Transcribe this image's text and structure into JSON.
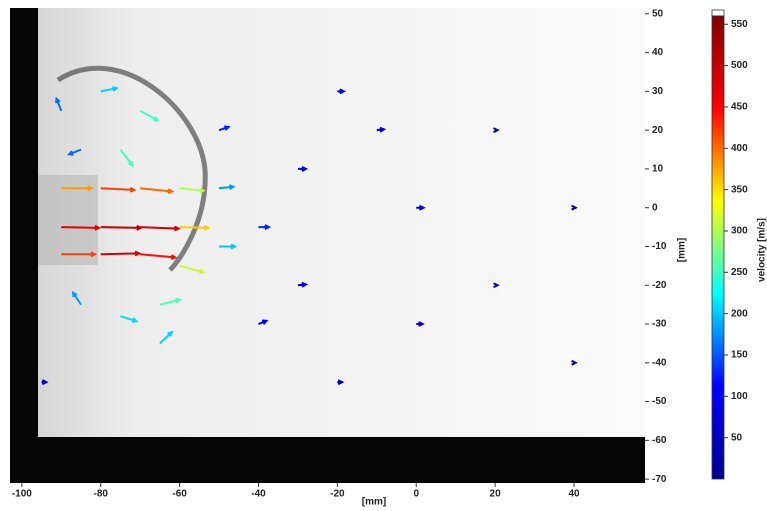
{
  "chart_data": {
    "type": "quiver",
    "xlabel": "[mm]",
    "ylabel": "[mm]",
    "xlim": [
      -103,
      58
    ],
    "ylim": [
      -71,
      51.5
    ],
    "xticks": [
      -100,
      -80,
      -60,
      -40,
      -20,
      0,
      20,
      40
    ],
    "yticks": [
      50,
      40,
      30,
      20,
      10,
      0,
      -10,
      -20,
      -30,
      -40,
      -50,
      -60,
      -70
    ],
    "vectors": {
      "x": [
        -90,
        -80,
        -70,
        -85,
        -75,
        -90,
        -80,
        -70,
        -60,
        -90,
        -80,
        -70,
        -60,
        -90,
        -80,
        -70,
        -60,
        -85,
        -75,
        -65,
        -65,
        -50,
        -50,
        -50,
        -40,
        -40,
        -30,
        -30,
        -20,
        -20,
        0,
        0,
        20,
        20,
        40,
        40,
        -95,
        -10
      ],
      "y": [
        25,
        30,
        25,
        15,
        15,
        5,
        5,
        5,
        5,
        -5,
        -5,
        -5,
        -5,
        -12,
        -12,
        -12,
        -15,
        -25,
        -28,
        -25,
        -35,
        -10,
        5,
        20,
        -5,
        -30,
        10,
        -20,
        30,
        -45,
        0,
        -30,
        20,
        -20,
        0,
        -40,
        -45,
        20
      ],
      "u": [
        -60,
        200,
        220,
        -150,
        150,
        380,
        420,
        400,
        300,
        470,
        500,
        480,
        360,
        420,
        480,
        440,
        300,
        -100,
        200,
        250,
        150,
        200,
        180,
        120,
        130,
        100,
        100,
        100,
        80,
        60,
        90,
        80,
        30,
        30,
        20,
        20,
        60,
        90
      ],
      "v": [
        150,
        40,
        -120,
        -60,
        -200,
        0,
        -20,
        -40,
        -30,
        -10,
        -10,
        -20,
        -10,
        0,
        10,
        -40,
        -80,
        150,
        -60,
        60,
        140,
        0,
        20,
        40,
        0,
        40,
        0,
        10,
        0,
        0,
        0,
        0,
        0,
        0,
        0,
        0,
        0,
        10
      ]
    },
    "colorbar": {
      "label": "velocity [m/s]",
      "lim": [
        0,
        560
      ],
      "ticks": [
        50,
        100,
        150,
        200,
        250,
        300,
        350,
        400,
        450,
        500,
        550
      ],
      "colormap": [
        "#00008f",
        "#0000ff",
        "#00ffff",
        "#ffff00",
        "#ff0000",
        "#800000"
      ]
    }
  }
}
